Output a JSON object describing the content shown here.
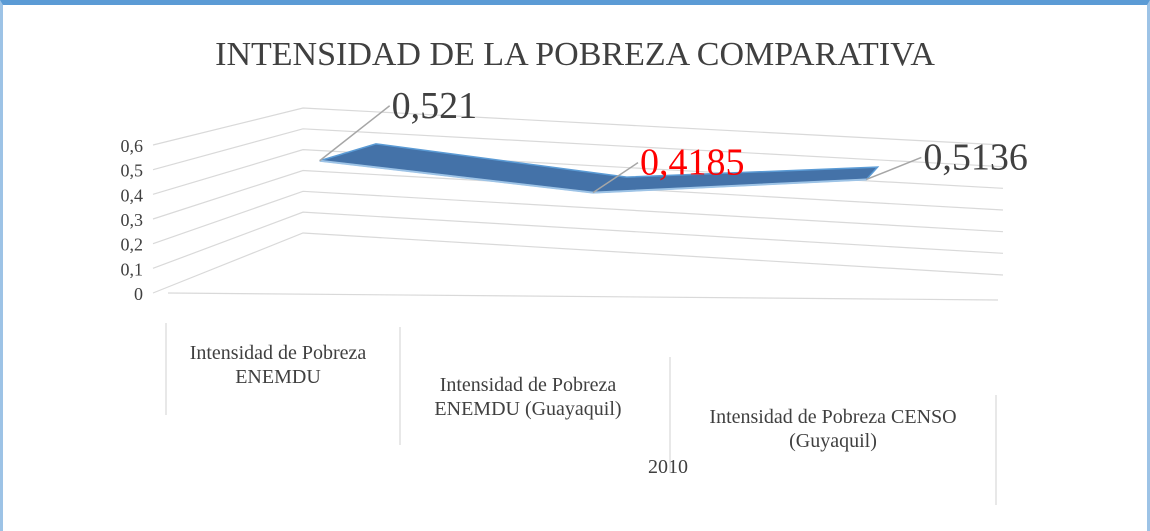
{
  "chart_data": {
    "type": "line3d",
    "title": "INTENSIDAD DE LA POBREZA COMPARATIVA",
    "x_label": "2010",
    "categories": [
      "Intensidad de Pobreza ENEMDU",
      "Intensidad de Pobreza ENEMDU (Guayaquil)",
      "Intensidad de Pobreza CENSO (Guyaquil)"
    ],
    "series": [
      {
        "name": "2010",
        "color": "#4472a8",
        "values": [
          0.521,
          0.4185,
          0.5136
        ],
        "value_labels": [
          "0,521",
          "0,4185",
          "0,5136"
        ],
        "label_colors": [
          "#404040",
          "#ff0000",
          "#404040"
        ]
      }
    ],
    "ylim": [
      0,
      0.6
    ],
    "yticks": [
      0,
      {
        "value": 0.1,
        "label": "0,1"
      },
      {
        "value": 0.2,
        "label": "0,2"
      },
      {
        "value": 0.3,
        "label": "0,3"
      },
      {
        "value": 0.4,
        "label": "0,4"
      },
      {
        "value": 0.5,
        "label": "0,5"
      },
      {
        "value": 0.6,
        "label": "0,6"
      }
    ],
    "grid": true
  }
}
